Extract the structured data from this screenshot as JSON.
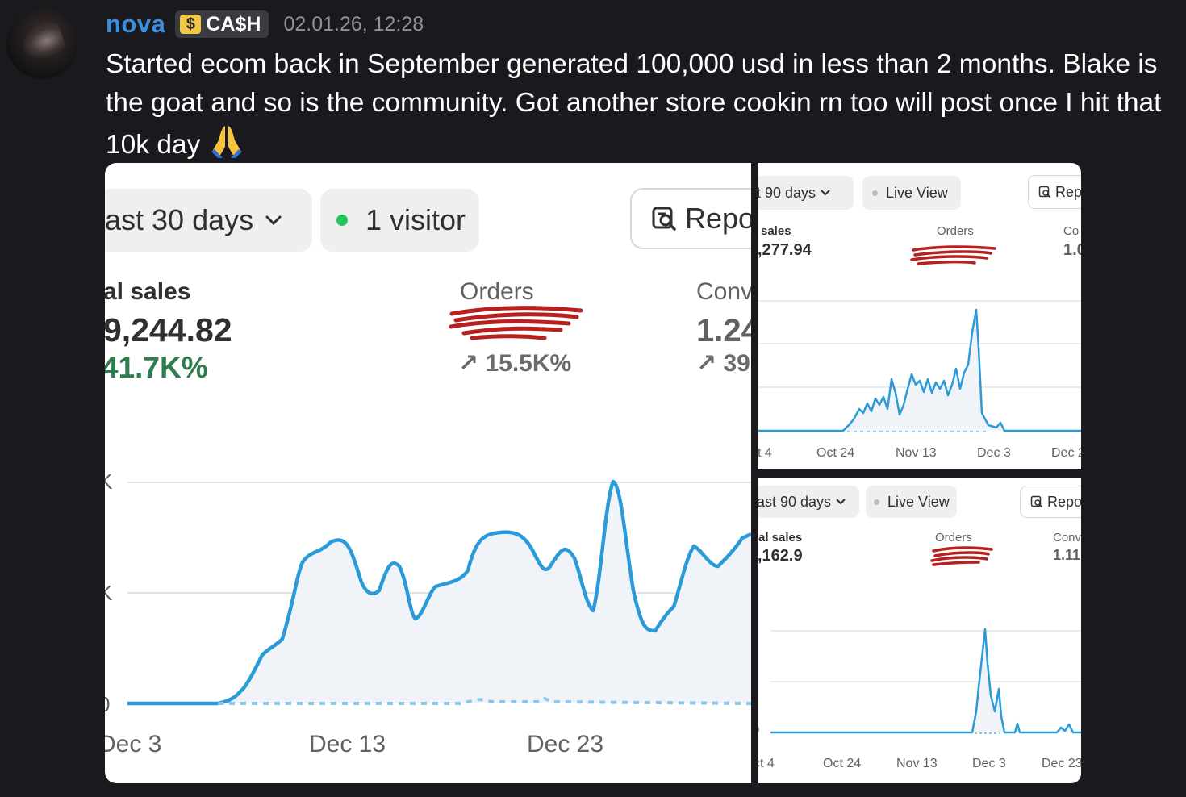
{
  "message": {
    "username": "nova",
    "tag_icon": "$",
    "tag_label": "CA$H",
    "timestamp": "02.01.26, 12:28",
    "text": "Started ecom back in September generated 100,000 usd in less than 2 months. Blake is the goat and so is the community. Got another store cookin rn too will post once I hit that 10k day",
    "emoji": "folded-hands"
  },
  "screenshot_main": {
    "date_range": "ast 30 days",
    "visitors": "1 visitor",
    "report_button": "Repo",
    "metrics": [
      {
        "label": "al sales",
        "value": "9,244.82",
        "change": "41.7K%"
      },
      {
        "label": "Orders",
        "value": "[redacted]",
        "change": "↗ 15.5K%"
      },
      {
        "label": "Conv",
        "value": "1.24",
        "change": "↗ 39"
      }
    ],
    "y_ticks": [
      "K",
      "K",
      "0"
    ],
    "x_ticks": [
      "Dec 3",
      "Dec 13",
      "Dec 23"
    ]
  },
  "screenshot_top_right": {
    "date_range": "t 90 days",
    "live_view": "Live View",
    "report_button": "Rep",
    "metrics": [
      {
        "label": "sales",
        "value": ",277.94"
      },
      {
        "label": "Orders",
        "value": "[redacted]"
      },
      {
        "label": "Co",
        "value": "1.0"
      }
    ],
    "x_ticks": [
      "t 4",
      "Oct 24",
      "Nov 13",
      "Dec 3",
      "Dec 2"
    ]
  },
  "screenshot_bottom_right": {
    "date_range": "ast 90 days",
    "live_view": "Live View",
    "report_button": "Repo",
    "metrics": [
      {
        "label": "al sales",
        "value": ",162.9"
      },
      {
        "label": "Orders",
        "value": "[redacted]"
      },
      {
        "label": "Conv",
        "value": "1.11"
      }
    ],
    "y_ticks": [
      "0"
    ],
    "x_ticks": [
      "ct 4",
      "Oct 24",
      "Nov 13",
      "Dec 3",
      "Dec 23"
    ]
  },
  "colors": {
    "line": "#2a9ad8",
    "redaction": "#b81f1f",
    "green_dot": "#22c55e",
    "username": "#3a8fe0"
  }
}
